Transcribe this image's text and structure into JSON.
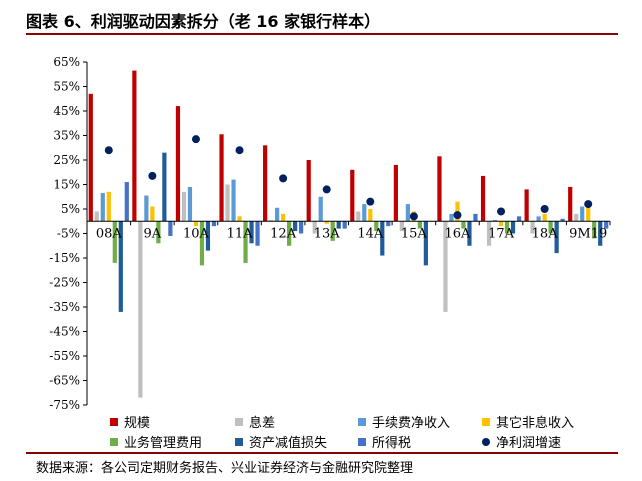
{
  "title": "图表 6、利润驱动因素拆分（老 16 家银行样本）",
  "source": "数据来源：各公司定期财务报告、兴业证券经济与金融研究院整理",
  "chart_data": {
    "type": "bar",
    "categories": [
      "08A",
      "9A",
      "10A",
      "11A",
      "12A",
      "13A",
      "14A",
      "15A",
      "16A",
      "17A",
      "18A",
      "9M19"
    ],
    "ylim": [
      -75,
      65
    ],
    "yticks": [
      -75,
      -65,
      -55,
      -45,
      -35,
      -25,
      -15,
      -5,
      5,
      15,
      25,
      35,
      45,
      55,
      65
    ],
    "ytick_labels": [
      "-75%",
      "-65%",
      "-55%",
      "-45%",
      "-35%",
      "-25%",
      "-15%",
      "-5%",
      "5%",
      "15%",
      "25%",
      "35%",
      "45%",
      "55%",
      "65%"
    ],
    "bar_series": [
      {
        "name": "规模",
        "color": "#C00000",
        "values": [
          52,
          61.5,
          47,
          35.5,
          31,
          25,
          21,
          23,
          26.5,
          18.5,
          13,
          14
        ]
      },
      {
        "name": "息差",
        "color": "#BFBFBF",
        "values": [
          4,
          -72,
          12,
          15,
          0.5,
          -5,
          4,
          -4,
          -37,
          -10,
          -5,
          3
        ]
      },
      {
        "name": "手续费净收入",
        "color": "#5B9BD5",
        "values": [
          11.5,
          10.5,
          14,
          17,
          5.5,
          10,
          7,
          7,
          3,
          0.5,
          2,
          6
        ]
      },
      {
        "name": "其它非息收入",
        "color": "#FFC000",
        "values": [
          12,
          6,
          -2,
          2,
          3,
          -1,
          5,
          4,
          8,
          -2,
          3,
          6
        ]
      },
      {
        "name": "业务管理费用",
        "color": "#70AD47",
        "values": [
          -17,
          -9,
          -18,
          -17,
          -10,
          -8,
          -4,
          -3,
          -3,
          -5,
          -5,
          -7
        ]
      },
      {
        "name": "资产减值损失",
        "color": "#1F5C99",
        "values": [
          -37,
          28,
          -12,
          -9,
          -4,
          -3,
          -14,
          -18,
          -10,
          -5,
          -13,
          -10
        ]
      },
      {
        "name": "所得税",
        "color": "#4472C4",
        "values": [
          16,
          -6,
          -2,
          -10,
          -5,
          -3,
          -2,
          0,
          3,
          2,
          1,
          -3
        ]
      }
    ],
    "dot_series": {
      "name": "净利润增速",
      "color": "#002060",
      "values": [
        29,
        18.5,
        33.5,
        29,
        17.5,
        13,
        8,
        2,
        2.5,
        4,
        5,
        7
      ]
    },
    "legend_labels": [
      "规模",
      "息差",
      "手续费净收入",
      "其它非息收入",
      "业务管理费用",
      "资产减值损失",
      "所得税",
      "净利润增速"
    ],
    "legend_placement": "bottom",
    "grid": false
  }
}
